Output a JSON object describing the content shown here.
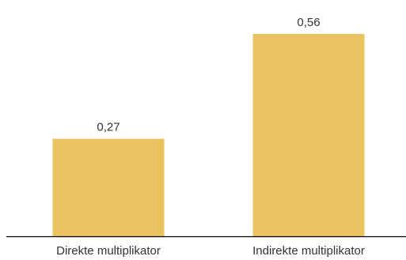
{
  "colors": {
    "bar": "#E8C35F",
    "axis": "#000000",
    "text": "#333333"
  },
  "chart_data": {
    "type": "bar",
    "categories": [
      "Direkte multiplikator",
      "Indirekte multiplikator"
    ],
    "values": [
      0.27,
      0.56
    ],
    "value_labels": [
      "0,27",
      "0,56"
    ],
    "title": "",
    "xlabel": "",
    "ylabel": "",
    "ylim": [
      0,
      0.56
    ],
    "grid": false,
    "legend": "none"
  }
}
